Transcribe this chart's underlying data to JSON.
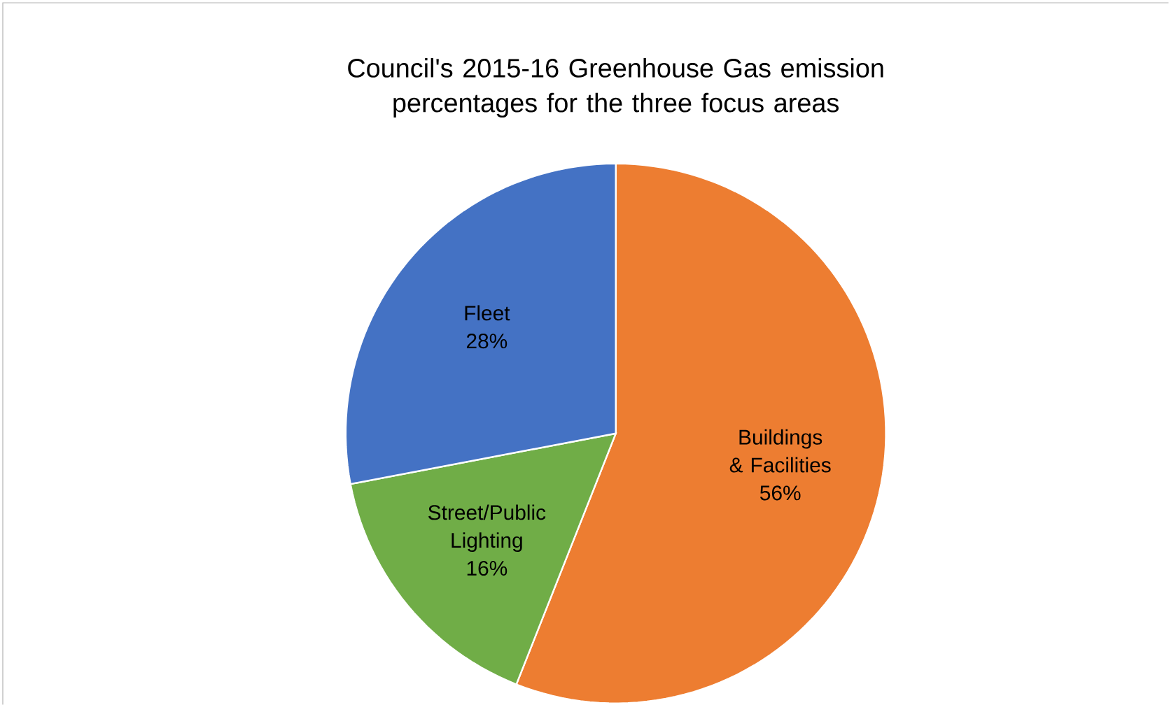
{
  "chart_data": {
    "type": "pie",
    "title": "Council's 2015-16 Greenhouse Gas emission percentages for the three focus areas",
    "categories": [
      "Buildings & Facilities",
      "Street/Public Lighting",
      "Fleet"
    ],
    "values": [
      56,
      16,
      28
    ],
    "value_labels": [
      "56%",
      "16%",
      "28%"
    ],
    "colors": [
      "#ed7d31",
      "#70ad47",
      "#4472c4"
    ]
  }
}
